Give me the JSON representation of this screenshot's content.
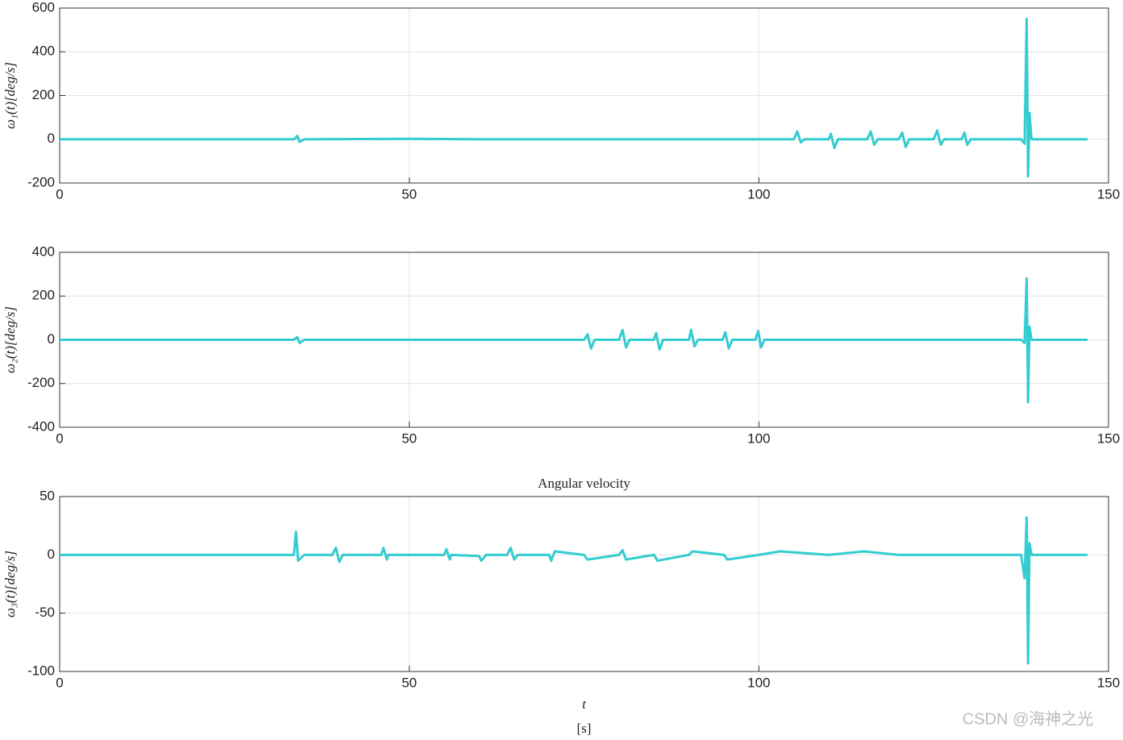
{
  "chart_data": [
    {
      "type": "line",
      "ylabel": "ω₁(t)[deg/s]",
      "xlim": [
        0,
        150
      ],
      "xticks": [
        0,
        50,
        100,
        150
      ],
      "ylim": [
        -200,
        600
      ],
      "yticks": [
        -200,
        0,
        200,
        400,
        600
      ],
      "grid": true,
      "x": [
        0,
        33.5,
        34,
        34.3,
        35,
        50,
        60,
        80,
        100,
        105,
        105.5,
        106,
        106.5,
        110,
        110.3,
        110.8,
        111.3,
        115.5,
        116,
        116.5,
        117,
        120,
        120.5,
        121,
        121.5,
        125,
        125.5,
        126,
        126.5,
        129,
        129.4,
        129.8,
        130.3,
        137.5,
        138,
        138.3,
        138.5,
        138.7,
        139,
        147
      ],
      "series": [
        {
          "color": "#33ccd0",
          "values": [
            0,
            0,
            15,
            -12,
            0,
            2,
            0,
            0,
            0,
            0,
            35,
            -15,
            0,
            0,
            25,
            -40,
            0,
            0,
            35,
            -25,
            0,
            0,
            30,
            -35,
            0,
            0,
            40,
            -25,
            0,
            0,
            30,
            -25,
            0,
            0,
            -20,
            550,
            -170,
            120,
            0,
            0
          ]
        }
      ]
    },
    {
      "type": "line",
      "ylabel": "ω₂(t)[deg/s]",
      "xlim": [
        0,
        150
      ],
      "xticks": [
        0,
        50,
        100,
        150
      ],
      "ylim": [
        -400,
        400
      ],
      "yticks": [
        -400,
        -200,
        0,
        200,
        400
      ],
      "grid": true,
      "x": [
        0,
        33.5,
        34,
        34.3,
        35,
        60,
        75,
        75.5,
        76,
        76.5,
        80,
        80.5,
        81,
        81.5,
        85,
        85.3,
        85.8,
        86.3,
        90,
        90.3,
        90.8,
        91.3,
        94.8,
        95.2,
        95.7,
        96.2,
        99.5,
        99.9,
        100.3,
        100.8,
        137.5,
        138,
        138.3,
        138.5,
        138.7,
        139,
        147
      ],
      "series": [
        {
          "color": "#33ccd0",
          "values": [
            0,
            0,
            12,
            -15,
            0,
            0,
            0,
            25,
            -40,
            0,
            0,
            45,
            -35,
            0,
            0,
            30,
            -45,
            0,
            0,
            45,
            -30,
            0,
            0,
            35,
            -40,
            0,
            0,
            40,
            -35,
            0,
            0,
            -15,
            280,
            -285,
            60,
            0,
            0
          ]
        }
      ]
    },
    {
      "type": "line",
      "title": "Angular velocity",
      "ylabel": "ω₃(t)[deg/s]",
      "xlabel": "t",
      "xunit": "[s]",
      "xlim": [
        0,
        150
      ],
      "xticks": [
        0,
        50,
        100,
        150
      ],
      "ylim": [
        -100,
        50
      ],
      "yticks": [
        -100,
        -50,
        0,
        50
      ],
      "grid": true,
      "x": [
        0,
        33.5,
        33.8,
        34.1,
        35,
        39,
        39.5,
        40,
        40.5,
        46,
        46.3,
        46.8,
        47,
        55,
        55.3,
        55.8,
        56,
        60,
        60.3,
        61,
        64,
        64.5,
        65,
        65.5,
        70,
        70.3,
        70.8,
        75,
        75.5,
        80,
        80.5,
        81,
        85,
        85.5,
        90,
        90.5,
        95,
        95.5,
        100,
        103,
        110,
        115,
        120,
        130,
        137.5,
        138,
        138.3,
        138.5,
        138.7,
        139,
        147
      ],
      "series": [
        {
          "color": "#33ccd0",
          "values": [
            0,
            0,
            20,
            -5,
            0,
            0,
            6,
            -6,
            0,
            0,
            6,
            -4,
            0,
            0,
            5,
            -4,
            0,
            -1,
            -5,
            0,
            0,
            6,
            -4,
            0,
            0,
            -5,
            3,
            0,
            -4,
            0,
            4,
            -4,
            0,
            -5,
            0,
            3,
            0,
            -4,
            0,
            3,
            0,
            3,
            0,
            0,
            0,
            -20,
            32,
            -93,
            10,
            0,
            0
          ]
        }
      ]
    }
  ],
  "watermark": "CSDN @海神之光"
}
